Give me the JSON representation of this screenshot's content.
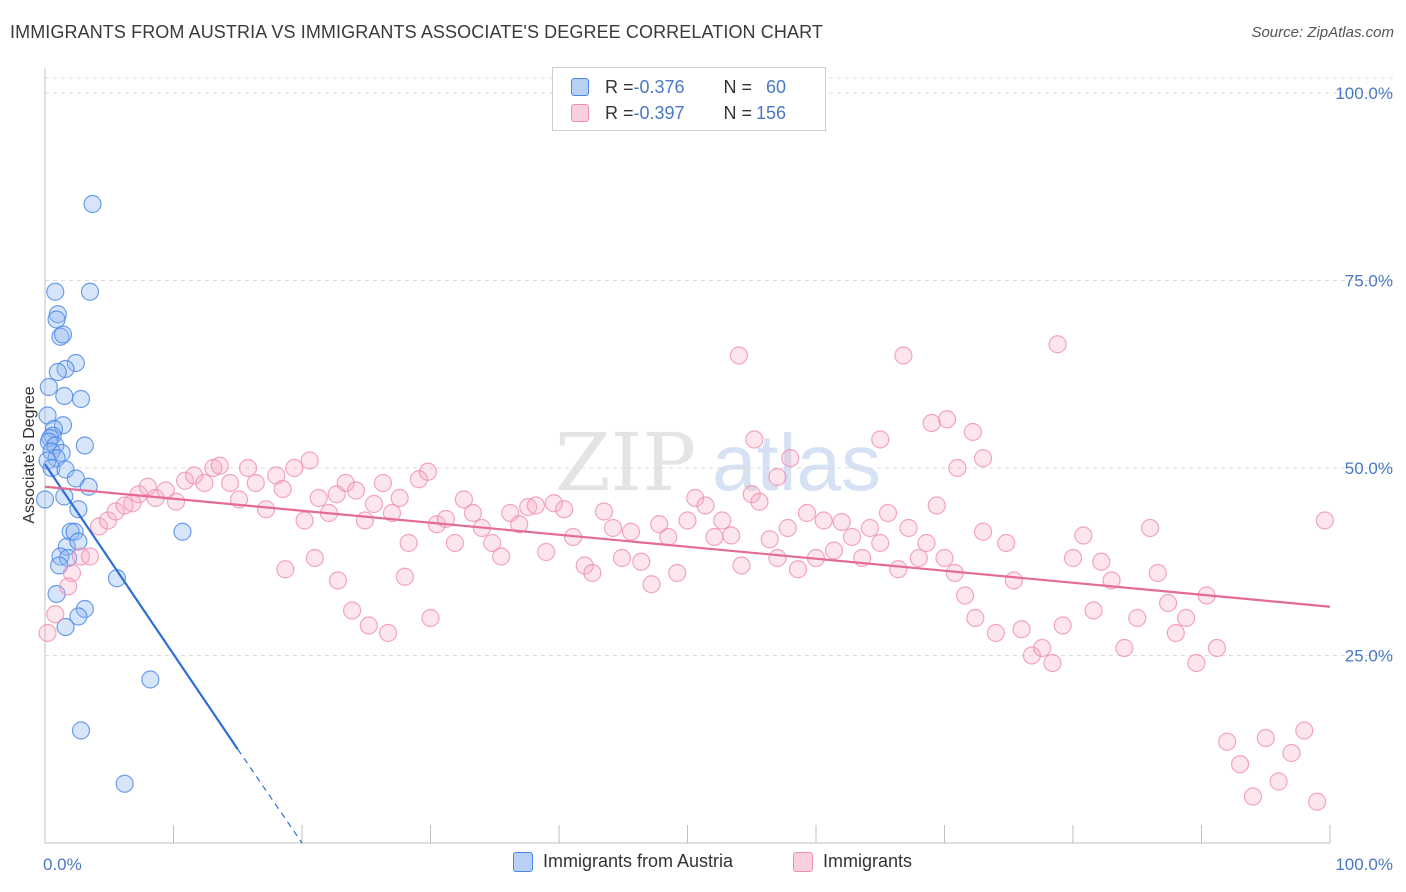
{
  "title": "IMMIGRANTS FROM AUSTRIA VS IMMIGRANTS ASSOCIATE'S DEGREE CORRELATION CHART",
  "source": "Source: ZipAtlas.com",
  "watermark": {
    "zip": "ZIP",
    "atlas": "atlas"
  },
  "legend": {
    "rows": [
      {
        "r_label": "R = ",
        "r_value": "-0.376",
        "n_label": "N = ",
        "n_value": "60",
        "color": "#4a86e8"
      },
      {
        "r_label": "R = ",
        "r_value": "-0.397",
        "n_label": "N = ",
        "n_value": "156",
        "color": "#f08fb0"
      }
    ]
  },
  "bottom_legend": [
    {
      "label": "Immigrants from Austria",
      "color": "#4a86e8"
    },
    {
      "label": "Immigrants",
      "color": "#f08fb0"
    }
  ],
  "chart_data": {
    "type": "scatter",
    "title": "IMMIGRANTS FROM AUSTRIA VS IMMIGRANTS ASSOCIATE'S DEGREE CORRELATION CHART",
    "xlabel": "",
    "ylabel": "Associate's Degree",
    "xlim": [
      0,
      100
    ],
    "ylim": [
      0,
      102
    ],
    "x_tick_labels": [
      "0.0%",
      "100.0%"
    ],
    "y_ticks": [
      25,
      50,
      75,
      100
    ],
    "y_tick_labels": [
      "25.0%",
      "50.0%",
      "75.0%",
      "100.0%"
    ],
    "grid": "horizontal dashed",
    "series": [
      {
        "name": "Immigrants from Austria",
        "color": "#4a86e8",
        "trend": {
          "x": [
            0,
            15
          ],
          "y": [
            50.5,
            12.5
          ],
          "dashed_to": [
            20,
            0
          ]
        },
        "points": [
          [
            3.7,
            85.2
          ],
          [
            0.8,
            73.5
          ],
          [
            3.5,
            73.5
          ],
          [
            1.0,
            70.5
          ],
          [
            0.9,
            69.8
          ],
          [
            1.2,
            67.5
          ],
          [
            1.4,
            67.8
          ],
          [
            2.4,
            64.0
          ],
          [
            1.6,
            63.2
          ],
          [
            1.0,
            62.8
          ],
          [
            0.3,
            60.8
          ],
          [
            1.5,
            59.6
          ],
          [
            2.8,
            59.2
          ],
          [
            0.2,
            57.0
          ],
          [
            1.4,
            55.7
          ],
          [
            0.7,
            55.2
          ],
          [
            0.6,
            54.3
          ],
          [
            0.4,
            54.0
          ],
          [
            0.3,
            53.5
          ],
          [
            0.8,
            53.0
          ],
          [
            3.1,
            53.0
          ],
          [
            0.5,
            52.2
          ],
          [
            1.3,
            52.0
          ],
          [
            0.9,
            51.3
          ],
          [
            0.2,
            51.0
          ],
          [
            0.5,
            50.0
          ],
          [
            1.6,
            49.8
          ],
          [
            2.4,
            48.6
          ],
          [
            3.4,
            47.5
          ],
          [
            1.5,
            46.2
          ],
          [
            0.0,
            45.8
          ],
          [
            2.6,
            44.5
          ],
          [
            2.0,
            41.5
          ],
          [
            2.3,
            41.5
          ],
          [
            10.7,
            41.5
          ],
          [
            1.7,
            39.5
          ],
          [
            2.6,
            40.2
          ],
          [
            1.2,
            38.2
          ],
          [
            1.8,
            38.0
          ],
          [
            1.1,
            37.0
          ],
          [
            5.6,
            35.3
          ],
          [
            0.9,
            33.2
          ],
          [
            3.1,
            31.2
          ],
          [
            2.6,
            30.2
          ],
          [
            1.6,
            28.8
          ],
          [
            8.2,
            21.8
          ],
          [
            2.8,
            15.0
          ],
          [
            6.2,
            7.9
          ]
        ]
      },
      {
        "name": "Immigrants",
        "color": "#f08fb0",
        "trend": {
          "x": [
            0,
            100
          ],
          "y": [
            47.5,
            31.5
          ]
        },
        "points": [
          [
            54.0,
            65.0
          ],
          [
            78.8,
            66.5
          ],
          [
            70.2,
            56.5
          ],
          [
            72.2,
            54.8
          ],
          [
            55.2,
            53.8
          ],
          [
            58.0,
            51.3
          ],
          [
            65.0,
            53.8
          ],
          [
            73.0,
            51.3
          ],
          [
            57.0,
            48.8
          ],
          [
            0.2,
            28.0
          ],
          [
            0.8,
            30.5
          ],
          [
            1.8,
            34.2
          ],
          [
            2.1,
            36.0
          ],
          [
            2.8,
            38.2
          ],
          [
            3.5,
            38.2
          ],
          [
            4.2,
            42.2
          ],
          [
            4.9,
            43.0
          ],
          [
            5.5,
            44.2
          ],
          [
            6.2,
            45.0
          ],
          [
            6.8,
            45.3
          ],
          [
            7.3,
            46.5
          ],
          [
            8.0,
            47.5
          ],
          [
            8.6,
            46.0
          ],
          [
            9.4,
            47.0
          ],
          [
            10.2,
            45.5
          ],
          [
            10.9,
            48.3
          ],
          [
            11.6,
            49.0
          ],
          [
            12.4,
            48.0
          ],
          [
            13.1,
            50.0
          ],
          [
            13.6,
            50.3
          ],
          [
            14.4,
            48.0
          ],
          [
            15.1,
            45.8
          ],
          [
            15.8,
            50.0
          ],
          [
            16.4,
            48.0
          ],
          [
            17.2,
            44.5
          ],
          [
            18.0,
            49.0
          ],
          [
            18.5,
            47.2
          ],
          [
            19.4,
            50.0
          ],
          [
            20.2,
            43.0
          ],
          [
            20.6,
            51.0
          ],
          [
            21.3,
            46.0
          ],
          [
            22.1,
            44.0
          ],
          [
            22.7,
            46.5
          ],
          [
            23.4,
            48.0
          ],
          [
            24.2,
            47.0
          ],
          [
            24.9,
            43.0
          ],
          [
            25.6,
            45.2
          ],
          [
            26.3,
            48.0
          ],
          [
            27.0,
            44.0
          ],
          [
            27.6,
            46.0
          ],
          [
            28.3,
            40.0
          ],
          [
            29.1,
            48.5
          ],
          [
            29.8,
            49.5
          ],
          [
            30.5,
            42.5
          ],
          [
            31.2,
            43.2
          ],
          [
            31.9,
            40.0
          ],
          [
            32.6,
            45.8
          ],
          [
            33.3,
            44.0
          ],
          [
            34.0,
            42.0
          ],
          [
            34.8,
            40.0
          ],
          [
            35.5,
            38.2
          ],
          [
            36.2,
            44.0
          ],
          [
            36.9,
            42.5
          ],
          [
            37.6,
            44.8
          ],
          [
            38.2,
            45.0
          ],
          [
            39.0,
            38.8
          ],
          [
            39.6,
            45.3
          ],
          [
            40.4,
            44.5
          ],
          [
            41.1,
            40.8
          ],
          [
            42.0,
            37.0
          ],
          [
            42.6,
            36.0
          ],
          [
            43.5,
            44.2
          ],
          [
            44.2,
            42.0
          ],
          [
            44.9,
            38.0
          ],
          [
            45.6,
            41.5
          ],
          [
            46.4,
            37.5
          ],
          [
            47.2,
            34.5
          ],
          [
            47.8,
            42.5
          ],
          [
            48.5,
            40.8
          ],
          [
            49.2,
            36.0
          ],
          [
            50.0,
            43.0
          ],
          [
            50.6,
            46.0
          ],
          [
            51.4,
            45.0
          ],
          [
            52.1,
            40.8
          ],
          [
            52.7,
            43.0
          ],
          [
            53.4,
            41.0
          ],
          [
            54.2,
            37.0
          ],
          [
            55.0,
            46.5
          ],
          [
            55.6,
            45.5
          ],
          [
            56.4,
            40.5
          ],
          [
            57.0,
            38.0
          ],
          [
            57.8,
            42.0
          ],
          [
            58.6,
            36.5
          ],
          [
            59.3,
            44.0
          ],
          [
            60.0,
            38.0
          ],
          [
            60.6,
            43.0
          ],
          [
            61.4,
            39.0
          ],
          [
            62.0,
            42.8
          ],
          [
            62.8,
            40.8
          ],
          [
            63.6,
            38.0
          ],
          [
            64.2,
            42.0
          ],
          [
            65.0,
            40.0
          ],
          [
            65.6,
            44.0
          ],
          [
            66.4,
            36.5
          ],
          [
            67.2,
            42.0
          ],
          [
            68.0,
            38.0
          ],
          [
            68.6,
            40.0
          ],
          [
            69.4,
            45.0
          ],
          [
            70.0,
            38.0
          ],
          [
            70.8,
            36.0
          ],
          [
            71.6,
            33.0
          ],
          [
            72.4,
            30.0
          ],
          [
            73.0,
            41.5
          ],
          [
            74.0,
            28.0
          ],
          [
            74.8,
            40.0
          ],
          [
            75.4,
            35.0
          ],
          [
            76.0,
            28.5
          ],
          [
            76.8,
            25.0
          ],
          [
            77.6,
            26.0
          ],
          [
            78.4,
            24.0
          ],
          [
            79.2,
            29.0
          ],
          [
            80.0,
            38.0
          ],
          [
            80.8,
            41.0
          ],
          [
            81.6,
            31.0
          ],
          [
            82.2,
            37.5
          ],
          [
            83.0,
            35.0
          ],
          [
            84.0,
            26.0
          ],
          [
            85.0,
            30.0
          ],
          [
            86.0,
            42.0
          ],
          [
            86.6,
            36.0
          ],
          [
            87.4,
            32.0
          ],
          [
            88.0,
            28.0
          ],
          [
            88.8,
            30.0
          ],
          [
            89.6,
            24.0
          ],
          [
            90.4,
            33.0
          ],
          [
            91.2,
            26.0
          ],
          [
            92.0,
            13.5
          ],
          [
            93.0,
            10.5
          ],
          [
            94.0,
            6.2
          ],
          [
            95.0,
            14.0
          ],
          [
            96.0,
            8.2
          ],
          [
            97.0,
            12.0
          ],
          [
            98.0,
            15.0
          ],
          [
            99.0,
            5.5
          ],
          [
            99.6,
            43.0
          ],
          [
            18.7,
            36.5
          ],
          [
            21.0,
            38.0
          ],
          [
            22.8,
            35.0
          ],
          [
            23.9,
            31.0
          ],
          [
            25.2,
            29.0
          ],
          [
            26.7,
            28.0
          ],
          [
            28.0,
            35.5
          ],
          [
            30.0,
            30.0
          ],
          [
            66.8,
            65.0
          ],
          [
            69.0,
            56.0
          ],
          [
            71.0,
            50.0
          ]
        ]
      }
    ]
  }
}
